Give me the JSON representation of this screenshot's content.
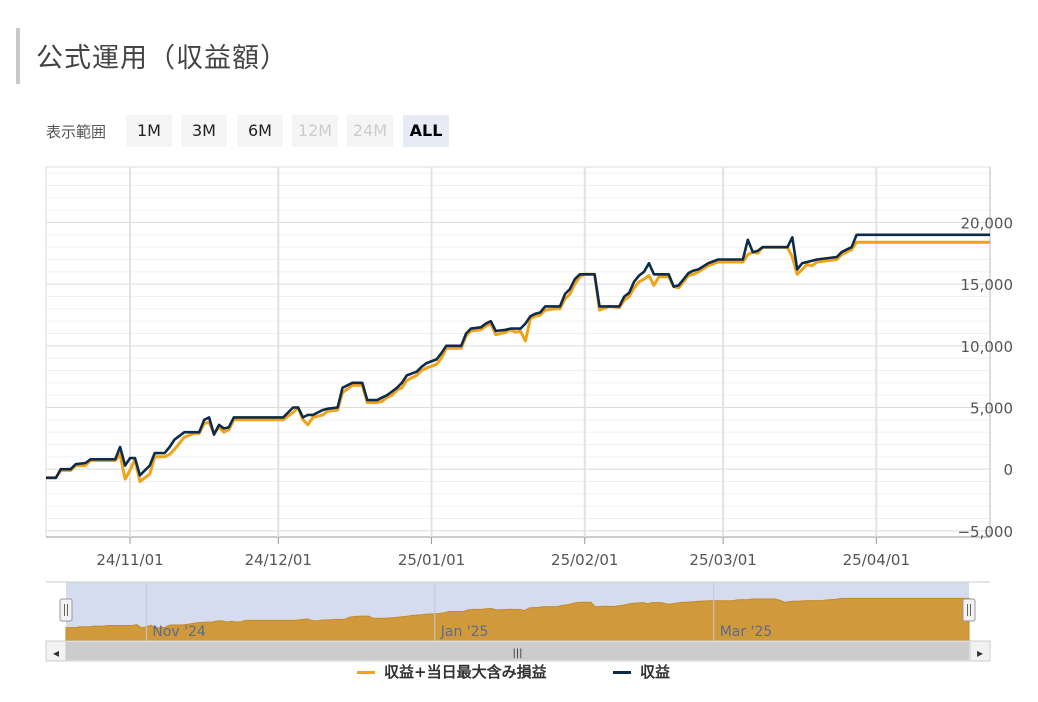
{
  "page": {
    "title": "公式運用（収益額）",
    "range_label": "表示範囲",
    "range_buttons": [
      {
        "label": "1M",
        "state": "normal"
      },
      {
        "label": "3M",
        "state": "normal"
      },
      {
        "label": "6M",
        "state": "normal"
      },
      {
        "label": "12M",
        "state": "disabled"
      },
      {
        "label": "24M",
        "state": "disabled"
      },
      {
        "label": "ALL",
        "state": "active"
      }
    ]
  },
  "chart_data": {
    "type": "line",
    "title": "",
    "xlabel": "",
    "ylabel": "",
    "x_ticks": [
      "24/11/01",
      "24/12/01",
      "25/01/01",
      "25/02/01",
      "25/03/01",
      "25/04/01"
    ],
    "y_ticks": [
      "20,000",
      "15,000",
      "10,000",
      "5,000",
      "0",
      "−5,000"
    ],
    "x_range": [
      "2024-10-15",
      "2025-04-24"
    ],
    "ylim": [
      -5500,
      24500
    ],
    "grid": true,
    "legend_position": "bottom-center",
    "series": [
      {
        "name": "収益+当日最大含み損益",
        "color": "#f0a318",
        "points": [
          [
            "2024-10-15",
            -700
          ],
          [
            "2024-10-17",
            -700
          ],
          [
            "2024-10-18",
            -100
          ],
          [
            "2024-10-20",
            -100
          ],
          [
            "2024-10-21",
            300
          ],
          [
            "2024-10-23",
            300
          ],
          [
            "2024-10-24",
            700
          ],
          [
            "2024-10-29",
            700
          ],
          [
            "2024-10-30",
            1200
          ],
          [
            "2024-10-31",
            -800
          ],
          [
            "2024-11-01",
            -100
          ],
          [
            "2024-11-02",
            800
          ],
          [
            "2024-11-03",
            -1000
          ],
          [
            "2024-11-05",
            -400
          ],
          [
            "2024-11-06",
            1000
          ],
          [
            "2024-11-08",
            1000
          ],
          [
            "2024-11-09",
            1200
          ],
          [
            "2024-11-10",
            1600
          ],
          [
            "2024-11-12",
            2600
          ],
          [
            "2024-11-14",
            2900
          ],
          [
            "2024-11-15",
            2900
          ],
          [
            "2024-11-16",
            3700
          ],
          [
            "2024-11-17",
            3800
          ],
          [
            "2024-11-18",
            2900
          ],
          [
            "2024-11-19",
            3400
          ],
          [
            "2024-11-20",
            3000
          ],
          [
            "2024-11-21",
            3200
          ],
          [
            "2024-11-22",
            4000
          ],
          [
            "2024-12-02",
            4000
          ],
          [
            "2024-12-03",
            4300
          ],
          [
            "2024-12-04",
            4600
          ],
          [
            "2024-12-05",
            5000
          ],
          [
            "2024-12-06",
            4000
          ],
          [
            "2024-12-07",
            3600
          ],
          [
            "2024-12-08",
            4200
          ],
          [
            "2024-12-10",
            4400
          ],
          [
            "2024-12-11",
            4700
          ],
          [
            "2024-12-13",
            4800
          ],
          [
            "2024-12-14",
            6200
          ],
          [
            "2024-12-16",
            6800
          ],
          [
            "2024-12-18",
            6800
          ],
          [
            "2024-12-19",
            5400
          ],
          [
            "2024-12-21",
            5400
          ],
          [
            "2024-12-22",
            5500
          ],
          [
            "2024-12-23",
            5800
          ],
          [
            "2024-12-24",
            6000
          ],
          [
            "2024-12-25",
            6400
          ],
          [
            "2024-12-26",
            6600
          ],
          [
            "2024-12-27",
            7200
          ],
          [
            "2024-12-29",
            7600
          ],
          [
            "2024-12-30",
            8000
          ],
          [
            "2024-12-31",
            8200
          ],
          [
            "2025-01-02",
            8500
          ],
          [
            "2025-01-03",
            9000
          ],
          [
            "2025-01-04",
            9800
          ],
          [
            "2025-01-07",
            9800
          ],
          [
            "2025-01-08",
            10800
          ],
          [
            "2025-01-09",
            11200
          ],
          [
            "2025-01-11",
            11300
          ],
          [
            "2025-01-12",
            11600
          ],
          [
            "2025-01-13",
            11800
          ],
          [
            "2025-01-14",
            10900
          ],
          [
            "2025-01-16",
            11100
          ],
          [
            "2025-01-17",
            11300
          ],
          [
            "2025-01-18",
            11100
          ],
          [
            "2025-01-19",
            11200
          ],
          [
            "2025-01-20",
            10400
          ],
          [
            "2025-01-21",
            12200
          ],
          [
            "2025-01-22",
            12400
          ],
          [
            "2025-01-23",
            12500
          ],
          [
            "2025-01-24",
            12900
          ],
          [
            "2025-01-26",
            13000
          ],
          [
            "2025-01-27",
            13000
          ],
          [
            "2025-01-28",
            13800
          ],
          [
            "2025-01-29",
            14200
          ],
          [
            "2025-01-30",
            15000
          ],
          [
            "2025-01-31",
            15600
          ],
          [
            "2025-02-01",
            15800
          ],
          [
            "2025-02-03",
            15800
          ],
          [
            "2025-02-04",
            12900
          ],
          [
            "2025-02-06",
            13200
          ],
          [
            "2025-02-08",
            13100
          ],
          [
            "2025-02-09",
            13700
          ],
          [
            "2025-02-10",
            14000
          ],
          [
            "2025-02-11",
            14700
          ],
          [
            "2025-02-12",
            15200
          ],
          [
            "2025-02-13",
            15400
          ],
          [
            "2025-02-14",
            15700
          ],
          [
            "2025-02-15",
            14900
          ],
          [
            "2025-02-16",
            15600
          ],
          [
            "2025-02-18",
            15600
          ],
          [
            "2025-02-19",
            14800
          ],
          [
            "2025-02-20",
            14700
          ],
          [
            "2025-02-21",
            15200
          ],
          [
            "2025-02-22",
            15700
          ],
          [
            "2025-02-23",
            15800
          ],
          [
            "2025-02-24",
            16000
          ],
          [
            "2025-02-26",
            16500
          ],
          [
            "2025-02-28",
            16800
          ],
          [
            "2025-03-05",
            16800
          ],
          [
            "2025-03-06",
            17400
          ],
          [
            "2025-03-07",
            17600
          ],
          [
            "2025-03-08",
            17500
          ],
          [
            "2025-03-09",
            18000
          ],
          [
            "2025-03-14",
            18000
          ],
          [
            "2025-03-15",
            17200
          ],
          [
            "2025-03-16",
            15800
          ],
          [
            "2025-03-17",
            16200
          ],
          [
            "2025-03-18",
            16600
          ],
          [
            "2025-03-19",
            16500
          ],
          [
            "2025-03-20",
            16800
          ],
          [
            "2025-03-24",
            17000
          ],
          [
            "2025-03-25",
            17400
          ],
          [
            "2025-03-26",
            17600
          ],
          [
            "2025-03-27",
            17800
          ],
          [
            "2025-03-28",
            18400
          ],
          [
            "2025-04-24",
            18400
          ]
        ]
      },
      {
        "name": "収益",
        "color": "#0d2b4a",
        "points": [
          [
            "2024-10-15",
            -700
          ],
          [
            "2024-10-17",
            -700
          ],
          [
            "2024-10-18",
            0
          ],
          [
            "2024-10-20",
            0
          ],
          [
            "2024-10-21",
            400
          ],
          [
            "2024-10-23",
            500
          ],
          [
            "2024-10-24",
            800
          ],
          [
            "2024-10-29",
            800
          ],
          [
            "2024-10-30",
            1800
          ],
          [
            "2024-10-31",
            300
          ],
          [
            "2024-11-01",
            900
          ],
          [
            "2024-11-02",
            900
          ],
          [
            "2024-11-03",
            -500
          ],
          [
            "2024-11-05",
            300
          ],
          [
            "2024-11-06",
            1300
          ],
          [
            "2024-11-08",
            1300
          ],
          [
            "2024-11-09",
            1800
          ],
          [
            "2024-11-10",
            2400
          ],
          [
            "2024-11-12",
            3000
          ],
          [
            "2024-11-14",
            3000
          ],
          [
            "2024-11-15",
            3000
          ],
          [
            "2024-11-16",
            4000
          ],
          [
            "2024-11-17",
            4200
          ],
          [
            "2024-11-18",
            2800
          ],
          [
            "2024-11-19",
            3600
          ],
          [
            "2024-11-20",
            3300
          ],
          [
            "2024-11-21",
            3400
          ],
          [
            "2024-11-22",
            4200
          ],
          [
            "2024-12-02",
            4200
          ],
          [
            "2024-12-03",
            4600
          ],
          [
            "2024-12-04",
            5000
          ],
          [
            "2024-12-05",
            5000
          ],
          [
            "2024-12-06",
            4200
          ],
          [
            "2024-12-07",
            4400
          ],
          [
            "2024-12-08",
            4400
          ],
          [
            "2024-12-10",
            4800
          ],
          [
            "2024-12-11",
            4900
          ],
          [
            "2024-12-13",
            5000
          ],
          [
            "2024-12-14",
            6600
          ],
          [
            "2024-12-16",
            7000
          ],
          [
            "2024-12-18",
            7000
          ],
          [
            "2024-12-19",
            5600
          ],
          [
            "2024-12-21",
            5600
          ],
          [
            "2024-12-22",
            5800
          ],
          [
            "2024-12-23",
            6000
          ],
          [
            "2024-12-24",
            6300
          ],
          [
            "2024-12-25",
            6600
          ],
          [
            "2024-12-26",
            7000
          ],
          [
            "2024-12-27",
            7600
          ],
          [
            "2024-12-29",
            7900
          ],
          [
            "2024-12-30",
            8300
          ],
          [
            "2024-12-31",
            8600
          ],
          [
            "2025-01-02",
            8900
          ],
          [
            "2025-01-03",
            9400
          ],
          [
            "2025-01-04",
            10000
          ],
          [
            "2025-01-07",
            10000
          ],
          [
            "2025-01-08",
            11000
          ],
          [
            "2025-01-09",
            11400
          ],
          [
            "2025-01-11",
            11500
          ],
          [
            "2025-01-12",
            11800
          ],
          [
            "2025-01-13",
            12000
          ],
          [
            "2025-01-14",
            11200
          ],
          [
            "2025-01-16",
            11300
          ],
          [
            "2025-01-17",
            11400
          ],
          [
            "2025-01-18",
            11400
          ],
          [
            "2025-01-19",
            11400
          ],
          [
            "2025-01-20",
            11800
          ],
          [
            "2025-01-21",
            12400
          ],
          [
            "2025-01-22",
            12600
          ],
          [
            "2025-01-23",
            12700
          ],
          [
            "2025-01-24",
            13200
          ],
          [
            "2025-01-26",
            13200
          ],
          [
            "2025-01-27",
            13200
          ],
          [
            "2025-01-28",
            14200
          ],
          [
            "2025-01-29",
            14600
          ],
          [
            "2025-01-30",
            15400
          ],
          [
            "2025-01-31",
            15800
          ],
          [
            "2025-02-01",
            15800
          ],
          [
            "2025-02-03",
            15800
          ],
          [
            "2025-02-04",
            13200
          ],
          [
            "2025-02-06",
            13200
          ],
          [
            "2025-02-08",
            13200
          ],
          [
            "2025-02-09",
            14000
          ],
          [
            "2025-02-10",
            14300
          ],
          [
            "2025-02-11",
            15200
          ],
          [
            "2025-02-12",
            15700
          ],
          [
            "2025-02-13",
            16000
          ],
          [
            "2025-02-14",
            16700
          ],
          [
            "2025-02-15",
            15800
          ],
          [
            "2025-02-16",
            15800
          ],
          [
            "2025-02-18",
            15800
          ],
          [
            "2025-02-19",
            14800
          ],
          [
            "2025-02-20",
            14900
          ],
          [
            "2025-02-21",
            15400
          ],
          [
            "2025-02-22",
            15900
          ],
          [
            "2025-02-23",
            16100
          ],
          [
            "2025-02-24",
            16200
          ],
          [
            "2025-02-26",
            16700
          ],
          [
            "2025-02-28",
            17000
          ],
          [
            "2025-03-05",
            17000
          ],
          [
            "2025-03-06",
            18600
          ],
          [
            "2025-03-07",
            17600
          ],
          [
            "2025-03-08",
            17700
          ],
          [
            "2025-03-09",
            18000
          ],
          [
            "2025-03-14",
            18000
          ],
          [
            "2025-03-15",
            18800
          ],
          [
            "2025-03-16",
            16200
          ],
          [
            "2025-03-17",
            16700
          ],
          [
            "2025-03-18",
            16800
          ],
          [
            "2025-03-19",
            16900
          ],
          [
            "2025-03-20",
            17000
          ],
          [
            "2025-03-24",
            17200
          ],
          [
            "2025-03-25",
            17600
          ],
          [
            "2025-03-26",
            17800
          ],
          [
            "2025-03-27",
            18000
          ],
          [
            "2025-03-28",
            19000
          ],
          [
            "2025-04-24",
            19000
          ]
        ]
      }
    ],
    "navigator": {
      "labels": [
        "Nov '24",
        "Jan '25",
        "Mar '25"
      ],
      "handle_glyph": "|||",
      "left_arrow": "◂",
      "right_arrow": "▸",
      "fill_color": "#d09a3c"
    }
  }
}
